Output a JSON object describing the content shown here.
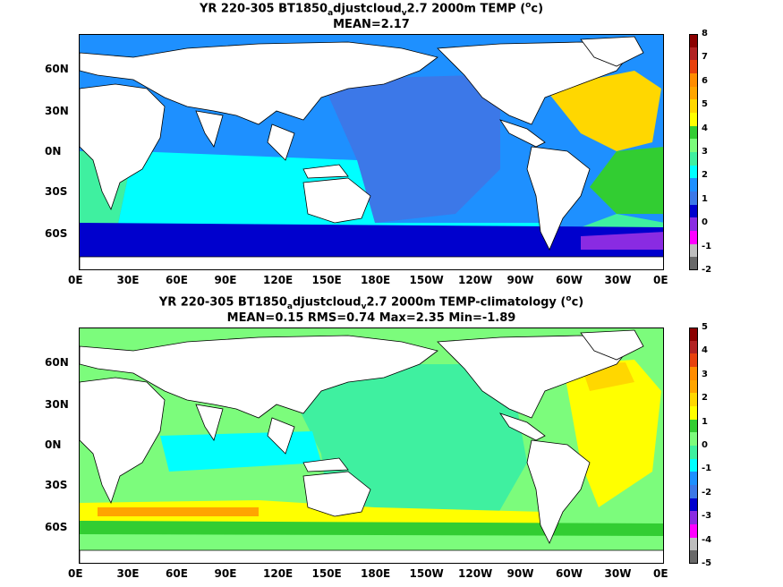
{
  "chart_data": [
    {
      "type": "heatmap",
      "title_parts": [
        "YR 220-305 BT1850",
        "a",
        "djustcloud",
        "v",
        "2.7 2000m TEMP (",
        "o",
        "c)"
      ],
      "subtitle": "MEAN=2.17",
      "x_ticks": [
        "0E",
        "30E",
        "60E",
        "90E",
        "120E",
        "150E",
        "180E",
        "150W",
        "120W",
        "90W",
        "60W",
        "30W",
        "0E"
      ],
      "y_ticks": [
        "60N",
        "30N",
        "0N",
        "30S",
        "60S"
      ],
      "colorbar": {
        "labels": [
          "8",
          "7",
          "6",
          "5",
          "4",
          "3",
          "2",
          "1",
          "0",
          "-1",
          "-2"
        ],
        "colors": [
          "#8b0000",
          "#b22222",
          "#e8410d",
          "#ff8c00",
          "#ffa500",
          "#ffd700",
          "#ffff00",
          "#32cd32",
          "#7cfc7c",
          "#3ff0a0",
          "#00ffff",
          "#1e90ff",
          "#3c78e8",
          "#0000cd",
          "#8a2be2",
          "#ff00ff",
          "#bebebe",
          "#696969"
        ]
      }
    },
    {
      "type": "heatmap",
      "title_parts": [
        "YR 220-305 BT1850",
        "a",
        "djustcloud",
        "v",
        "2.7 2000m TEMP-climatology (",
        "o",
        "c)"
      ],
      "subtitle": "MEAN=0.15   RMS=0.74   Max=2.35   Min=-1.89",
      "x_ticks": [
        "0E",
        "30E",
        "60E",
        "90E",
        "120E",
        "150E",
        "180E",
        "150W",
        "120W",
        "90W",
        "60W",
        "30W",
        "0E"
      ],
      "y_ticks": [
        "60N",
        "30N",
        "0N",
        "30S",
        "60S"
      ],
      "colorbar": {
        "labels": [
          "5",
          "4",
          "3",
          "2",
          "1",
          "0",
          "-1",
          "-2",
          "-3",
          "-4",
          "-5"
        ],
        "colors": [
          "#8b0000",
          "#b22222",
          "#e8410d",
          "#ff8c00",
          "#ffa500",
          "#ffd700",
          "#ffff00",
          "#32cd32",
          "#7cfc7c",
          "#3ff0a0",
          "#00ffff",
          "#1e90ff",
          "#3c78e8",
          "#0000cd",
          "#8a2be2",
          "#ff00ff",
          "#bebebe",
          "#696969"
        ]
      }
    }
  ]
}
